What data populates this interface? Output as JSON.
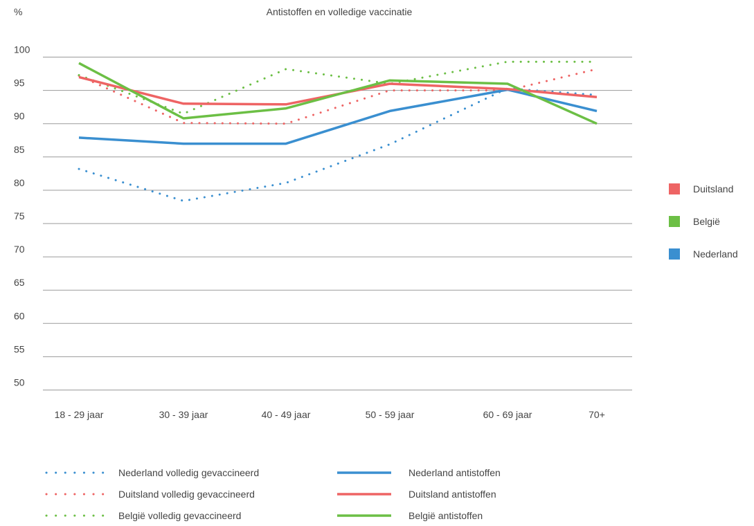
{
  "chart_data": {
    "type": "line",
    "title": "Antistoffen en volledige vaccinatie",
    "ylabel": "%",
    "xlabel": "",
    "ylim": [
      50,
      100
    ],
    "yticks": [
      50,
      55,
      60,
      65,
      70,
      75,
      80,
      85,
      90,
      95,
      100
    ],
    "grid": true,
    "categories": [
      "18 - 29 jaar",
      "30 - 39 jaar",
      "40 - 49 jaar",
      "50 - 59 jaar",
      "60 - 69 jaar",
      "70+"
    ],
    "series": [
      {
        "name": "Nederland volledig gevaccineerd",
        "country": "Nederland",
        "style": "dotted",
        "color": "#3a8fd0",
        "values": [
          83.2,
          78.4,
          81.1,
          86.9,
          95.3,
          94.3
        ]
      },
      {
        "name": "Duitsland volledig gevaccineerd",
        "country": "Duitsland",
        "style": "dotted",
        "color": "#ee6464",
        "values": [
          97.2,
          90.1,
          90.0,
          95.0,
          95.0,
          98.2
        ]
      },
      {
        "name": "België volledig gevaccineerd",
        "country": "België",
        "style": "dotted",
        "color": "#6cbf45",
        "values": [
          97.3,
          91.5,
          98.2,
          96.0,
          99.3,
          99.3
        ]
      },
      {
        "name": "Nederland antistoffen",
        "country": "Nederland",
        "style": "solid",
        "color": "#3a8fd0",
        "values": [
          87.9,
          87.0,
          87.0,
          91.9,
          95.1,
          91.9
        ]
      },
      {
        "name": "Duitsland antistoffen",
        "country": "Duitsland",
        "style": "solid",
        "color": "#ee6464",
        "values": [
          97.0,
          93.0,
          92.9,
          96.0,
          95.2,
          94.0
        ]
      },
      {
        "name": "België antistoffen",
        "country": "België",
        "style": "solid",
        "color": "#6cbf45",
        "values": [
          99.1,
          90.8,
          92.3,
          96.5,
          96.0,
          90.0
        ]
      }
    ],
    "country_legend": [
      {
        "label": "Duitsland",
        "color": "#ee6464"
      },
      {
        "label": "België",
        "color": "#6cbf45"
      },
      {
        "label": "Nederland",
        "color": "#3a8fd0"
      }
    ],
    "legend_position": "bottom",
    "country_legend_position": "right"
  }
}
